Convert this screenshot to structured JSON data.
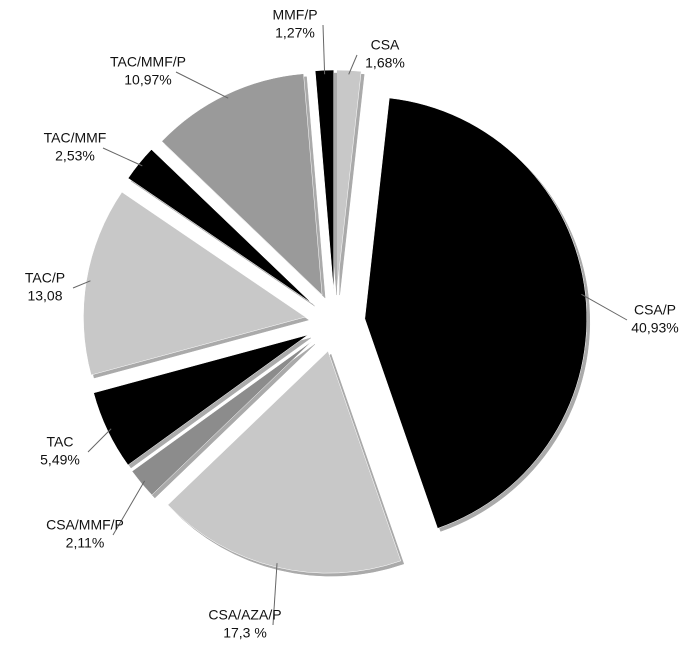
{
  "chart_data": {
    "type": "pie",
    "categories": [
      "CSA",
      "CSA/P",
      "CSA/AZA/P",
      "CSA/MMF/P",
      "TAC",
      "TAC/P",
      "TAC/MMF",
      "TAC/MMF/P",
      "MMF/P"
    ],
    "values": [
      1.68,
      40.93,
      17.3,
      2.11,
      5.49,
      13.08,
      2.53,
      10.97,
      1.27
    ],
    "value_labels": [
      "1,68%",
      "40,93%",
      "17,3 %",
      "2,11%",
      "5,49%",
      "13,08",
      "2,53%",
      "10,97%",
      "1,27%"
    ],
    "colors": [
      "#c8c8c8",
      "#000000",
      "#c8c8c8",
      "#8c8c8c",
      "#000000",
      "#c8c8c8",
      "#000000",
      "#9a9a9a",
      "#000000"
    ]
  }
}
